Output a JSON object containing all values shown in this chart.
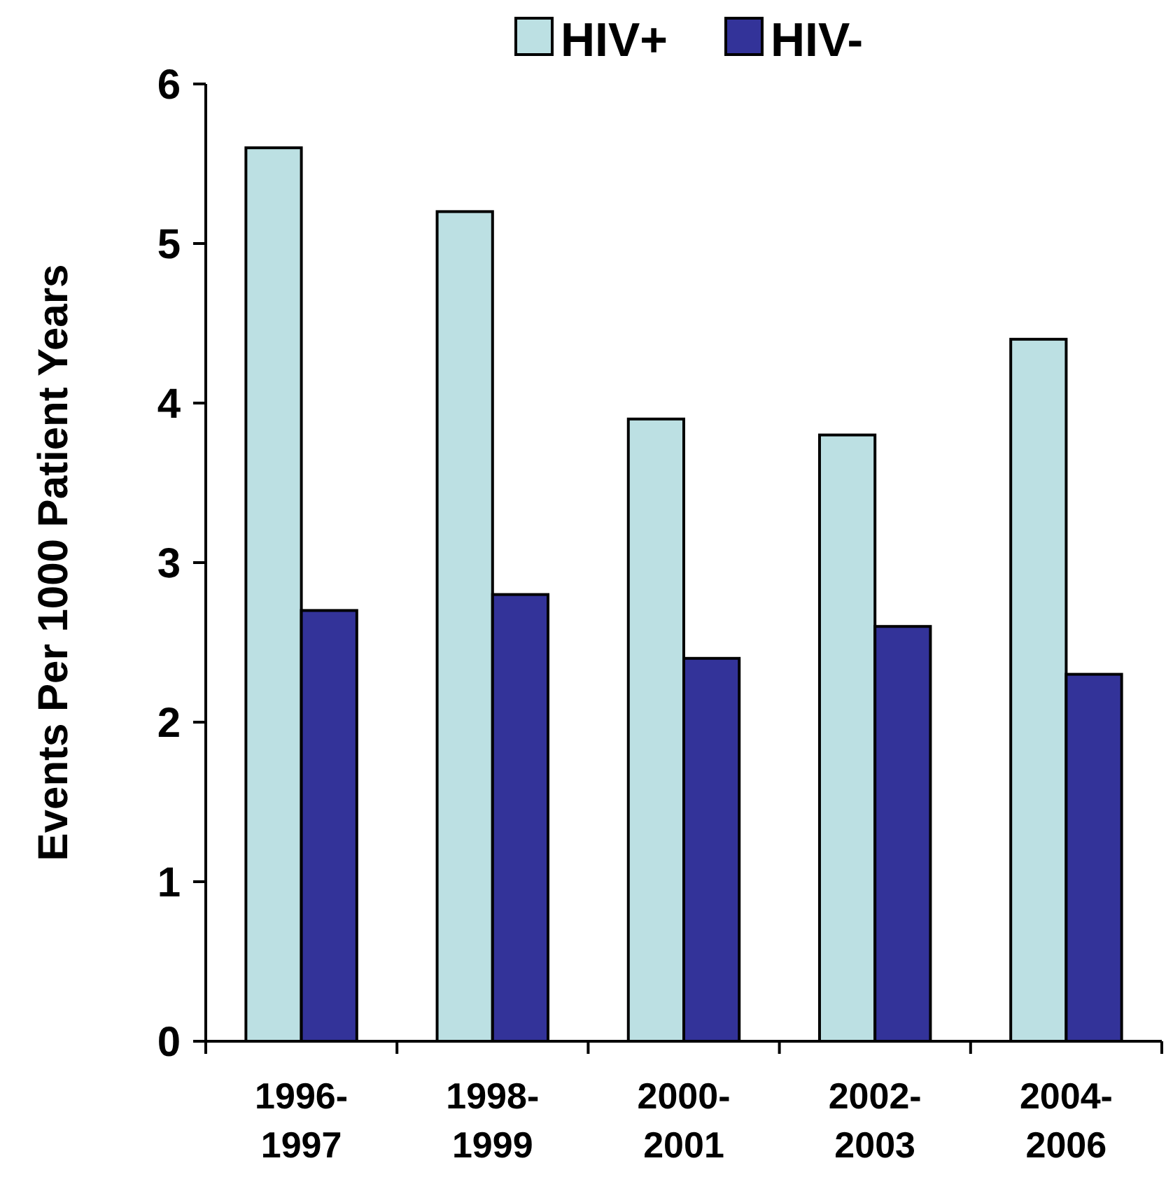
{
  "chart_data": {
    "type": "bar",
    "ylabel": "Events Per 1000 Patient Years",
    "categories": [
      "1996-1997",
      "1998-1999",
      "2000-2001",
      "2002-2003",
      "2004-2006"
    ],
    "series": [
      {
        "name": "HIV+",
        "color": "#bce0e3",
        "values": [
          5.6,
          5.2,
          3.9,
          3.8,
          4.4
        ]
      },
      {
        "name": "HIV-",
        "color": "#333399",
        "values": [
          2.7,
          2.8,
          2.4,
          2.6,
          2.3
        ]
      }
    ],
    "ylim": [
      0,
      6
    ],
    "yticks": [
      0,
      1,
      2,
      3,
      4,
      5,
      6
    ],
    "grid": false,
    "legend": "top"
  }
}
